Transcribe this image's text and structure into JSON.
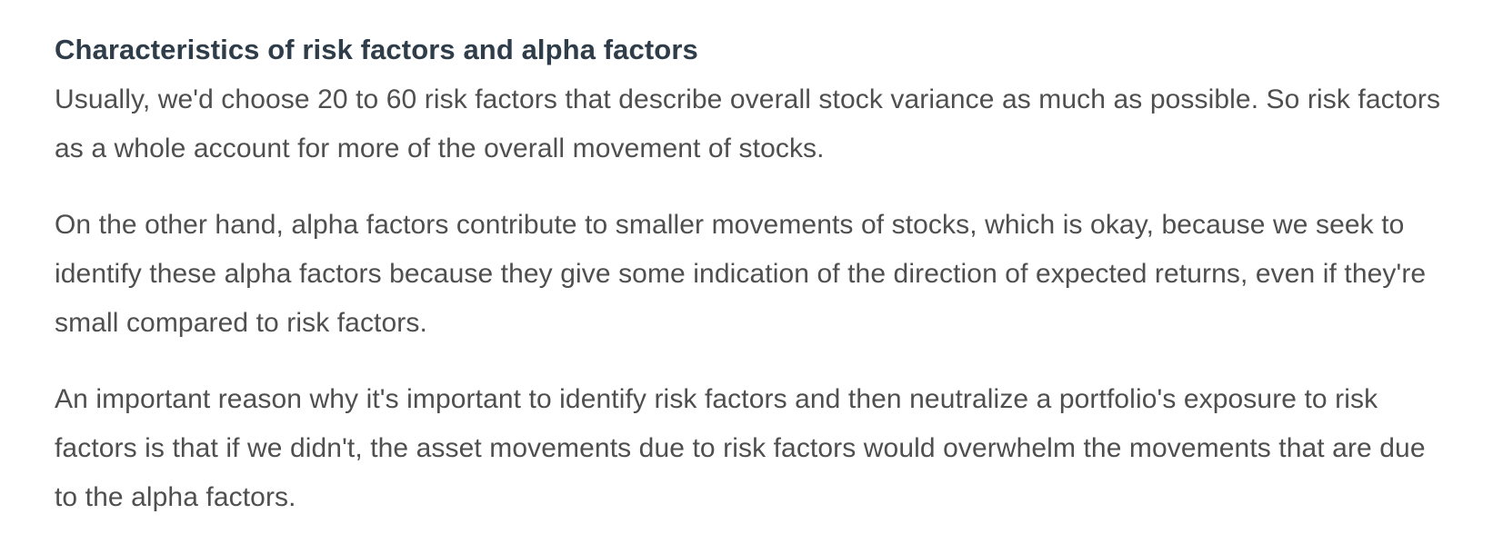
{
  "section": {
    "title": "Characteristics of risk factors and alpha factors",
    "paragraphs": [
      "Usually, we'd choose 20 to 60 risk factors that describe overall stock variance as much as possible. So risk factors as a whole account for more of the overall movement of stocks.",
      "On the other hand, alpha factors contribute to smaller movements of stocks, which is okay, because we seek to identify these alpha factors because they give some indication of the direction of expected returns, even if they're small compared to risk factors.",
      "An important reason why it's important to identify risk factors and then neutralize a portfolio's exposure to risk factors is that if we didn't, the asset movements due to risk factors would overwhelm the movements that are due to the alpha factors."
    ]
  }
}
